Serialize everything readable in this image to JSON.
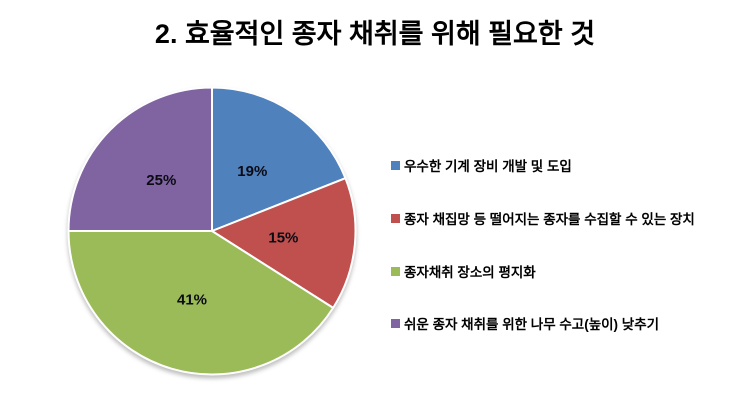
{
  "chart_data": {
    "type": "pie",
    "title": "2. 효율적인 종자 채취를 위해 필요한 것",
    "start_angle_deg": 0,
    "direction": "clockwise",
    "legend_position": "right",
    "grid": false,
    "background_color": "#ffffff",
    "label_color": "#0b0b14",
    "slice_border_color": "#ffffff",
    "series": [
      {
        "label": "우수한 기계 장비 개발 및 도입",
        "value": 19,
        "percent_label": "19%",
        "color": "#4F81BD"
      },
      {
        "label": "종자 채집망 등 떨어지는 종자를 수집할 수 있는 장치",
        "value": 15,
        "percent_label": "15%",
        "color": "#C0504D"
      },
      {
        "label": "종자채취 장소의 평지화",
        "value": 41,
        "percent_label": "41%",
        "color": "#9BBB59"
      },
      {
        "label": "쉬운 종자 채취를 위한 나무 수고(높이) 낮추기",
        "value": 25,
        "percent_label": "25%",
        "color": "#8064A2"
      }
    ]
  }
}
